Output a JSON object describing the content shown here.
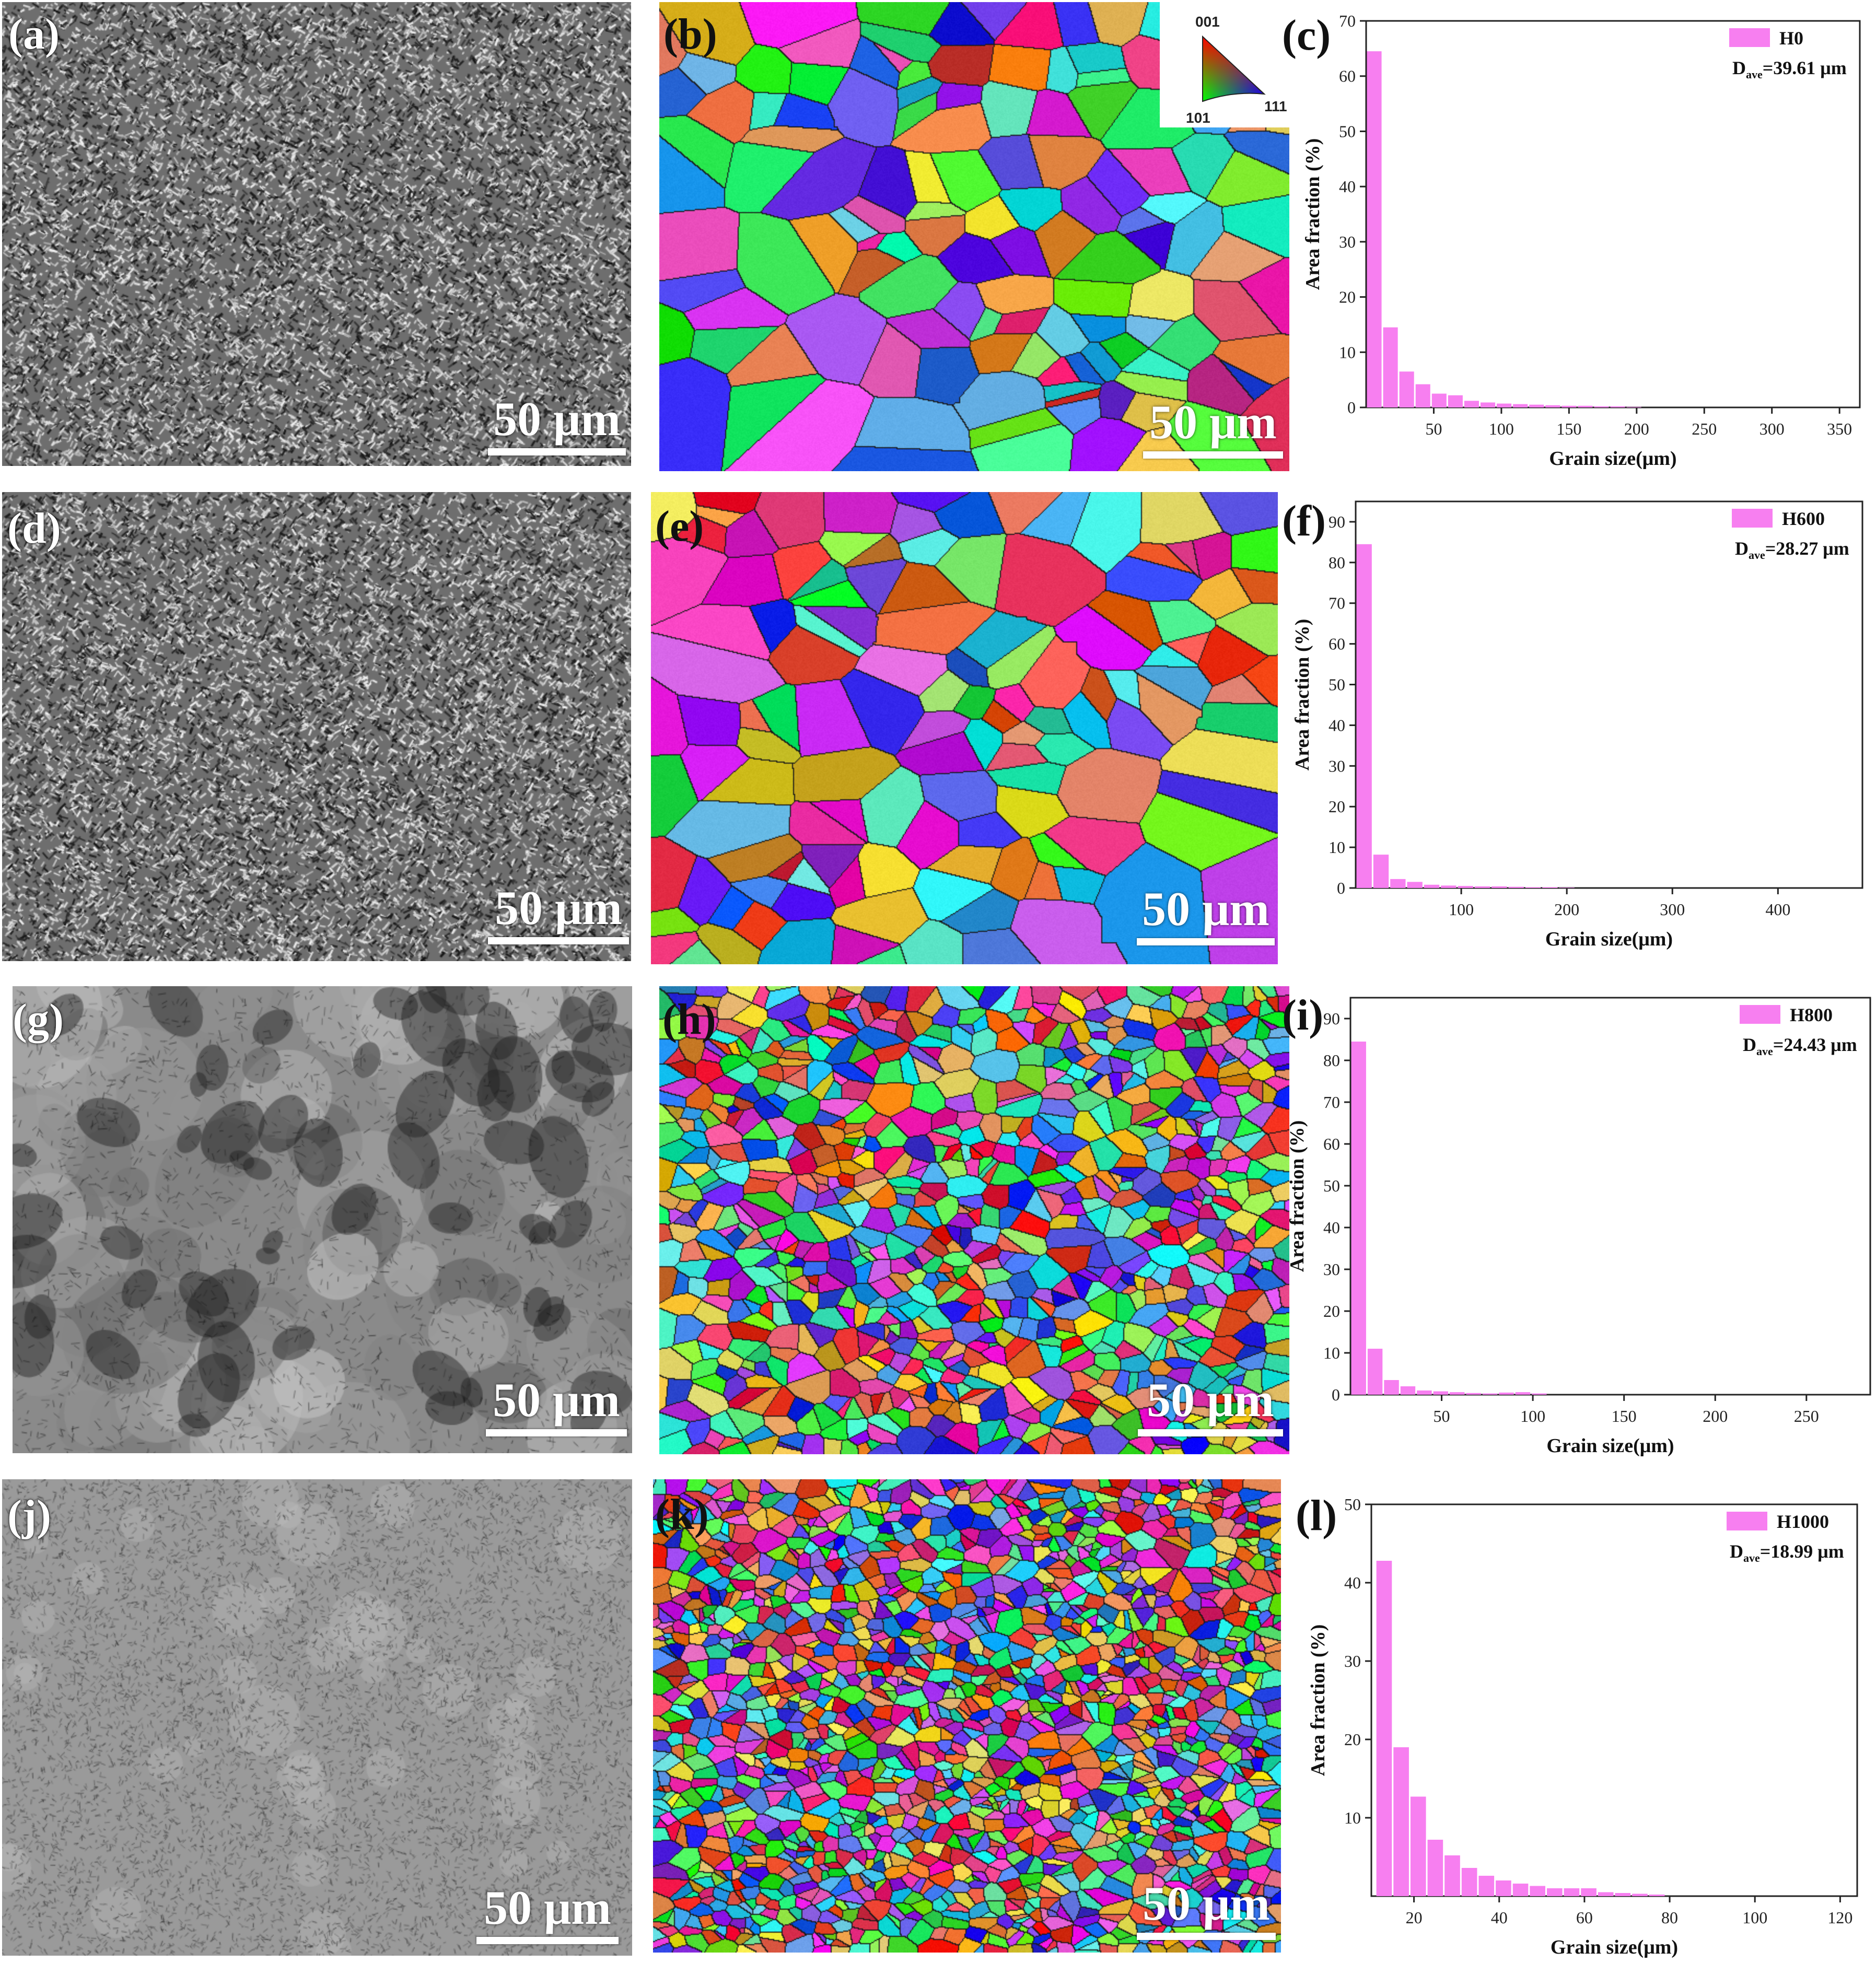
{
  "panels": [
    {
      "id": "a",
      "label": "(a)",
      "kind": "sem",
      "scale_bar": "50 μm",
      "style": "dendritic"
    },
    {
      "id": "b",
      "label": "(b)",
      "kind": "ebsd",
      "scale_bar": "50 μm",
      "grain_scale": "coarse",
      "ipf_key": {
        "top": "001",
        "left": "101",
        "right": "111"
      }
    },
    {
      "id": "c",
      "label": "(c)",
      "kind": "histogram"
    },
    {
      "id": "d",
      "label": "(d)",
      "kind": "sem",
      "scale_bar": "50 μm",
      "style": "dendritic"
    },
    {
      "id": "e",
      "label": "(e)",
      "kind": "ebsd",
      "scale_bar": "50 μm",
      "grain_scale": "coarse"
    },
    {
      "id": "f",
      "label": "(f)",
      "kind": "histogram"
    },
    {
      "id": "g",
      "label": "(g)",
      "kind": "sem",
      "scale_bar": "50 μm",
      "style": "mottled"
    },
    {
      "id": "h",
      "label": "(h)",
      "kind": "ebsd",
      "scale_bar": "50 μm",
      "grain_scale": "medium"
    },
    {
      "id": "i",
      "label": "(i)",
      "kind": "histogram"
    },
    {
      "id": "j",
      "label": "(j)",
      "kind": "sem",
      "scale_bar": "50 μm",
      "style": "fine"
    },
    {
      "id": "k",
      "label": "(k)",
      "kind": "ebsd",
      "scale_bar": "50 μm",
      "grain_scale": "fine"
    },
    {
      "id": "l",
      "label": "(l)",
      "kind": "histogram"
    }
  ],
  "chart_data": [
    {
      "panel": "c",
      "type": "bar",
      "legend": {
        "name": "H0",
        "dave_prefix": "D",
        "dave_sub": "ave",
        "dave_value": "=39.61 μm"
      },
      "xlabel": "Grain size(μm)",
      "ylabel": "Area fraction (%)",
      "xlim": [
        0,
        365
      ],
      "ylim": [
        0,
        70
      ],
      "xticks": [
        50,
        100,
        150,
        200,
        250,
        300,
        350
      ],
      "yticks": [
        0,
        10,
        20,
        30,
        40,
        50,
        60,
        70
      ],
      "bin_width": 12,
      "bins": [
        {
          "x": 12,
          "y": 64.5
        },
        {
          "x": 24,
          "y": 14.5
        },
        {
          "x": 36,
          "y": 6.5
        },
        {
          "x": 48,
          "y": 4.2
        },
        {
          "x": 60,
          "y": 2.5
        },
        {
          "x": 72,
          "y": 2.2
        },
        {
          "x": 84,
          "y": 1.2
        },
        {
          "x": 96,
          "y": 0.9
        },
        {
          "x": 108,
          "y": 0.7
        },
        {
          "x": 120,
          "y": 0.6
        },
        {
          "x": 132,
          "y": 0.5
        },
        {
          "x": 144,
          "y": 0.4
        },
        {
          "x": 156,
          "y": 0.3
        },
        {
          "x": 168,
          "y": 0.3
        },
        {
          "x": 180,
          "y": 0.2
        },
        {
          "x": 192,
          "y": 0.2
        },
        {
          "x": 204,
          "y": 0.1
        }
      ]
    },
    {
      "panel": "f",
      "type": "bar",
      "legend": {
        "name": "H600",
        "dave_prefix": "D",
        "dave_sub": "ave",
        "dave_value": "=28.27 μm"
      },
      "xlabel": "Grain size(μm)",
      "ylabel": "Area fraction (%)",
      "xlim": [
        0,
        480
      ],
      "ylim": [
        0,
        95
      ],
      "xticks": [
        100,
        200,
        300,
        400
      ],
      "yticks": [
        0,
        10,
        20,
        30,
        40,
        50,
        60,
        70,
        80,
        90
      ],
      "bin_width": 16,
      "bins": [
        {
          "x": 16,
          "y": 84.5
        },
        {
          "x": 32,
          "y": 8.2
        },
        {
          "x": 48,
          "y": 2.2
        },
        {
          "x": 64,
          "y": 1.5
        },
        {
          "x": 80,
          "y": 0.8
        },
        {
          "x": 96,
          "y": 0.6
        },
        {
          "x": 112,
          "y": 0.5
        },
        {
          "x": 128,
          "y": 0.4
        },
        {
          "x": 144,
          "y": 0.4
        },
        {
          "x": 160,
          "y": 0.3
        },
        {
          "x": 176,
          "y": 0.2
        },
        {
          "x": 192,
          "y": 0.2
        },
        {
          "x": 208,
          "y": 0.1
        }
      ]
    },
    {
      "panel": "i",
      "type": "bar",
      "legend": {
        "name": "H800",
        "dave_prefix": "D",
        "dave_sub": "ave",
        "dave_value": "=24.43 μm"
      },
      "xlabel": "Grain size(μm)",
      "ylabel": "Area fraction (%)",
      "xlim": [
        0,
        285
      ],
      "ylim": [
        0,
        95
      ],
      "xticks": [
        50,
        100,
        150,
        200,
        250
      ],
      "yticks": [
        0,
        10,
        20,
        30,
        40,
        50,
        60,
        70,
        80,
        90
      ],
      "bin_width": 9,
      "bins": [
        {
          "x": 9,
          "y": 84.5
        },
        {
          "x": 18,
          "y": 11
        },
        {
          "x": 27,
          "y": 3.5
        },
        {
          "x": 36,
          "y": 2
        },
        {
          "x": 45,
          "y": 1
        },
        {
          "x": 54,
          "y": 0.8
        },
        {
          "x": 63,
          "y": 0.6
        },
        {
          "x": 72,
          "y": 0.4
        },
        {
          "x": 81,
          "y": 0.3
        },
        {
          "x": 90,
          "y": 0.5
        },
        {
          "x": 99,
          "y": 0.6
        },
        {
          "x": 108,
          "y": 0.3
        }
      ]
    },
    {
      "panel": "l",
      "type": "bar",
      "legend": {
        "name": "H1000",
        "dave_prefix": "D",
        "dave_sub": "ave",
        "dave_value": "=18.99 μm"
      },
      "xlabel": "Grain size(μm)",
      "ylabel": "Area fraction (%)",
      "xlim": [
        10,
        124
      ],
      "ylim": [
        0,
        50
      ],
      "xticks": [
        20,
        40,
        60,
        80,
        100,
        120
      ],
      "yticks": [
        10,
        20,
        30,
        40,
        50
      ],
      "bin_width": 4,
      "bins": [
        {
          "x": 15,
          "y": 42.8
        },
        {
          "x": 19,
          "y": 19
        },
        {
          "x": 23,
          "y": 12.7
        },
        {
          "x": 27,
          "y": 7.2
        },
        {
          "x": 31,
          "y": 5.2
        },
        {
          "x": 35,
          "y": 3.6
        },
        {
          "x": 39,
          "y": 2.6
        },
        {
          "x": 43,
          "y": 2
        },
        {
          "x": 47,
          "y": 1.6
        },
        {
          "x": 51,
          "y": 1.3
        },
        {
          "x": 55,
          "y": 1
        },
        {
          "x": 59,
          "y": 1
        },
        {
          "x": 63,
          "y": 1
        },
        {
          "x": 67,
          "y": 0.5
        },
        {
          "x": 71,
          "y": 0.4
        },
        {
          "x": 75,
          "y": 0.3
        },
        {
          "x": 79,
          "y": 0.2
        }
      ]
    }
  ]
}
